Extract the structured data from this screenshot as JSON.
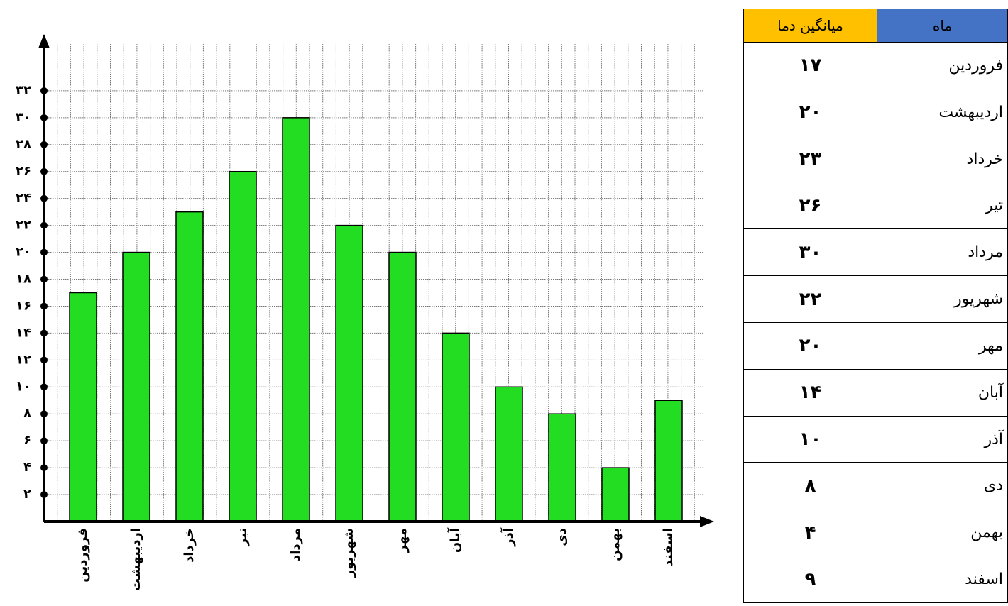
{
  "chart_data": {
    "type": "bar",
    "categories": [
      "فروردین",
      "اردیبهشت",
      "خرداد",
      "تیر",
      "مرداد",
      "شهریور",
      "مهر",
      "آبان",
      "آذر",
      "دی",
      "بهمن",
      "اسفند"
    ],
    "values": [
      17,
      20,
      23,
      26,
      30,
      22,
      20,
      14,
      10,
      8,
      4,
      9
    ],
    "color": "#22dd22",
    "ylim": [
      0,
      36
    ],
    "yticks": [
      {
        "value": 2,
        "label": "۲"
      },
      {
        "value": 4,
        "label": "۴"
      },
      {
        "value": 6,
        "label": "۶"
      },
      {
        "value": 8,
        "label": "۸"
      },
      {
        "value": 10,
        "label": "۱۰"
      },
      {
        "value": 12,
        "label": "۱۲"
      },
      {
        "value": 14,
        "label": "۱۴"
      },
      {
        "value": 16,
        "label": "۱۶"
      },
      {
        "value": 18,
        "label": "۱۸"
      },
      {
        "value": 20,
        "label": "۲۰"
      },
      {
        "value": 22,
        "label": "۲۲"
      },
      {
        "value": 24,
        "label": "۲۴"
      },
      {
        "value": 26,
        "label": "۲۶"
      },
      {
        "value": 28,
        "label": "۲۸"
      },
      {
        "value": 30,
        "label": "۳۰"
      },
      {
        "value": 32,
        "label": "۳۲"
      }
    ],
    "grid": true
  },
  "table": {
    "header": [
      "ماه",
      "میانگین دما"
    ],
    "rows": [
      [
        "فروردین",
        "۱۷"
      ],
      [
        "اردیبهشت",
        "۲۰"
      ],
      [
        "خرداد",
        "۲۳"
      ],
      [
        "تیر",
        "۲۶"
      ],
      [
        "مرداد",
        "۳۰"
      ],
      [
        "شهریور",
        "۲۲"
      ],
      [
        "مهر",
        "۲۰"
      ],
      [
        "آبان",
        "۱۴"
      ],
      [
        "آذر",
        "۱۰"
      ],
      [
        "دی",
        "۸"
      ],
      [
        "بهمن",
        "۴"
      ],
      [
        "اسفند",
        "۹"
      ]
    ]
  }
}
